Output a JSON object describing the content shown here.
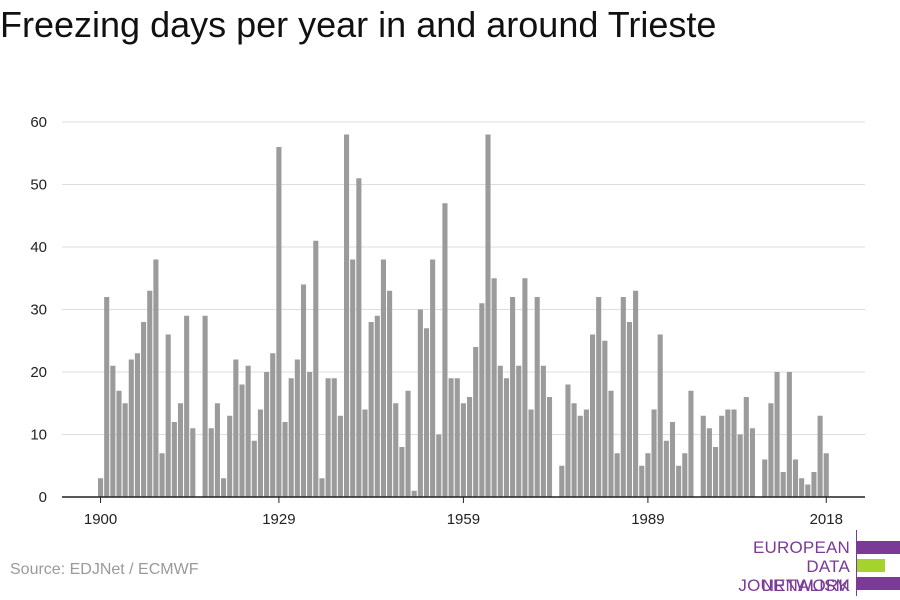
{
  "header": {
    "title": "Freezing days per year in and around Trieste"
  },
  "footer": {
    "source": "Source: EDJNet / ECMWF"
  },
  "logo": {
    "line1": "EUROPEAN",
    "line2": "DATA JOURNALISM",
    "line3": "NETWORK",
    "colors": {
      "purple": "#7b3a96",
      "green": "#a5d22d"
    }
  },
  "chart_data": {
    "type": "bar",
    "title": "Freezing days per year in and around Trieste",
    "xlabel": "",
    "ylabel": "",
    "x_start": 1900,
    "x_end": 2018,
    "xticks": [
      "1900",
      "1929",
      "1959",
      "1989",
      "2018"
    ],
    "ylim": [
      0,
      60
    ],
    "yticks": [
      "0",
      "10",
      "20",
      "30",
      "40",
      "50",
      "60"
    ],
    "grid": true,
    "bar_color": "#9b9b9b",
    "values": [
      3,
      32,
      21,
      17,
      15,
      22,
      23,
      28,
      33,
      38,
      7,
      26,
      12,
      15,
      29,
      11,
      0,
      29,
      11,
      15,
      3,
      13,
      22,
      18,
      21,
      9,
      14,
      20,
      23,
      56,
      12,
      19,
      22,
      34,
      20,
      41,
      3,
      19,
      19,
      13,
      58,
      38,
      51,
      14,
      28,
      29,
      38,
      33,
      15,
      8,
      17,
      1,
      30,
      27,
      38,
      10,
      47,
      19,
      19,
      15,
      16,
      24,
      31,
      58,
      35,
      21,
      19,
      32,
      21,
      35,
      14,
      32,
      21,
      16,
      0,
      5,
      18,
      15,
      13,
      14,
      26,
      32,
      25,
      17,
      7,
      32,
      28,
      33,
      5,
      7,
      14,
      26,
      9,
      12,
      5,
      7,
      17,
      0,
      13,
      11,
      8,
      13,
      14,
      14,
      10,
      16,
      11,
      0,
      6,
      15,
      20,
      4,
      20,
      6,
      3,
      2,
      4,
      13,
      7
    ]
  }
}
